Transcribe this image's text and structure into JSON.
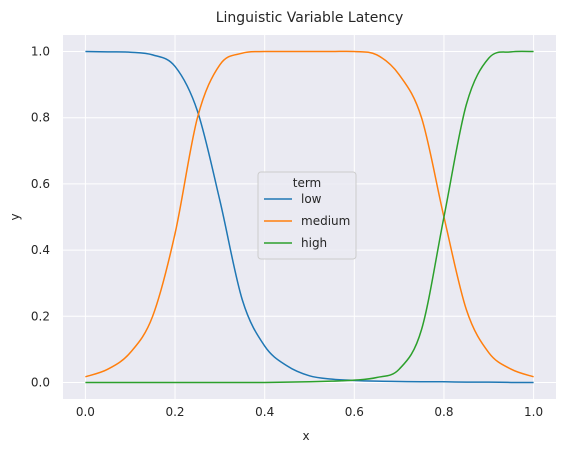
{
  "chart_data": {
    "type": "line",
    "title": "Linguistic Variable Latency",
    "xlabel": "x",
    "ylabel": "y",
    "xlim": [
      -0.05,
      1.05
    ],
    "ylim": [
      -0.05,
      1.05
    ],
    "xticks": [
      "0.0",
      "0.2",
      "0.4",
      "0.6",
      "0.8",
      "1.0"
    ],
    "yticks": [
      "0.0",
      "0.2",
      "0.4",
      "0.6",
      "0.8",
      "1.0"
    ],
    "grid": true,
    "legend": {
      "title": "term",
      "placement": "center"
    },
    "x": [
      0.0,
      0.05,
      0.1,
      0.15,
      0.2,
      0.25,
      0.3,
      0.35,
      0.4,
      0.45,
      0.5,
      0.55,
      0.6,
      0.65,
      0.7,
      0.75,
      0.8,
      0.85,
      0.9,
      0.95,
      1.0
    ],
    "series": [
      {
        "name": "low",
        "color": "#1f77b4",
        "values": [
          1.0,
          0.999,
          0.998,
          0.99,
          0.955,
          0.82,
          0.55,
          0.25,
          0.11,
          0.05,
          0.02,
          0.01,
          0.006,
          0.004,
          0.003,
          0.002,
          0.002,
          0.001,
          0.001,
          0.0,
          0.0
        ]
      },
      {
        "name": "medium",
        "color": "#ff7f0e",
        "values": [
          0.017,
          0.04,
          0.09,
          0.2,
          0.45,
          0.8,
          0.96,
          0.995,
          1.0,
          1.0,
          1.0,
          1.0,
          1.0,
          0.99,
          0.93,
          0.8,
          0.5,
          0.22,
          0.09,
          0.04,
          0.017
        ]
      },
      {
        "name": "high",
        "color": "#2ca02c",
        "values": [
          0.0,
          0.0,
          0.0,
          0.0,
          0.0,
          0.0,
          0.0,
          0.0,
          0.0,
          0.001,
          0.002,
          0.004,
          0.007,
          0.015,
          0.04,
          0.16,
          0.5,
          0.84,
          0.98,
          0.999,
          1.0
        ]
      }
    ]
  }
}
